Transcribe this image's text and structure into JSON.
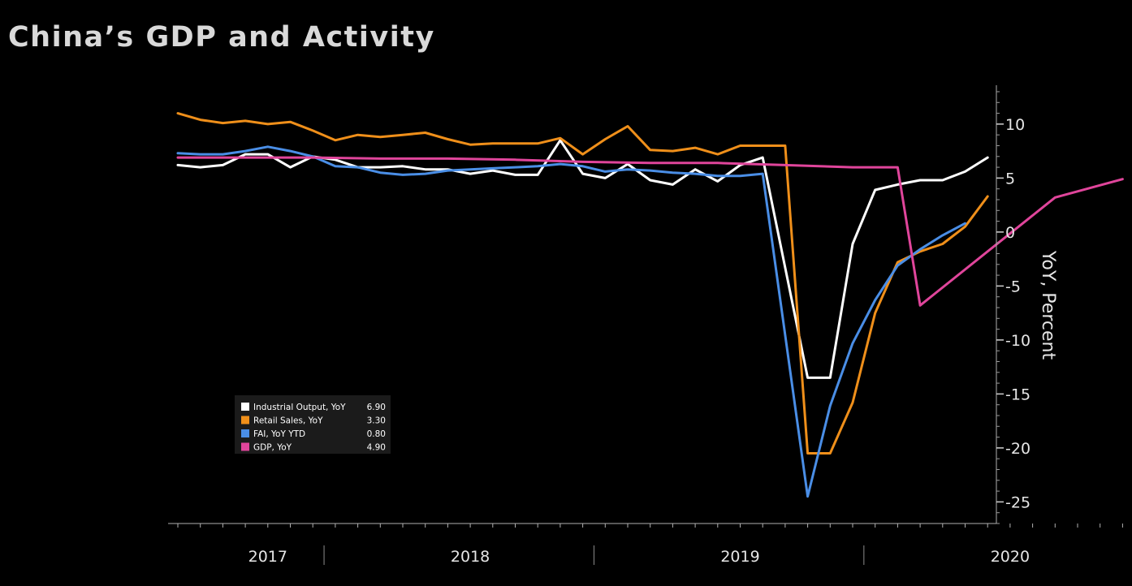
{
  "chart_data": {
    "type": "line",
    "title": "China’s GDP and Activity",
    "ylabel": "YoY, Percent",
    "xlabel": "",
    "ylim": [
      -27,
      13.6
    ],
    "y_ticks": [
      10,
      5,
      0,
      -5,
      -10,
      -15,
      -20,
      -25
    ],
    "y_tick_labels": [
      "10",
      "5",
      "0",
      "-5",
      "-10",
      "-15",
      "-20",
      "-25"
    ],
    "y_axis_position": "right",
    "x_start": "2017-06",
    "x_end": "2021-03",
    "year_labels": [
      {
        "label": "2017",
        "date": "2017-10"
      },
      {
        "label": "2018",
        "date": "2018-07"
      },
      {
        "label": "2019",
        "date": "2019-07"
      },
      {
        "label": "2020",
        "date": "2020-07"
      }
    ],
    "year_separators": [
      "2018-01",
      "2019-01",
      "2020-01"
    ],
    "grid": false,
    "legend_position": "bottom-left",
    "series": [
      {
        "name": "Industrial Output, YoY",
        "last_value": "6.90",
        "color": "#ffffff",
        "start": "2017-06",
        "values": [
          6.2,
          6.0,
          6.2,
          7.2,
          7.2,
          6.0,
          7.0,
          6.7,
          6.0,
          6.0,
          6.1,
          5.8,
          5.8,
          5.4,
          5.7,
          5.3,
          5.3,
          8.5,
          5.4,
          5.0,
          6.3,
          4.8,
          4.4,
          5.8,
          4.7,
          6.2,
          6.9,
          null,
          -13.5,
          -13.5,
          -1.1,
          3.9,
          4.4,
          4.8,
          4.8,
          5.6,
          6.9
        ]
      },
      {
        "name": "Retail Sales, YoY",
        "last_value": "3.30",
        "color": "#ef8f1a",
        "start": "2017-06",
        "values": [
          11.0,
          10.4,
          10.1,
          10.3,
          10.0,
          10.2,
          9.4,
          8.5,
          9.0,
          8.8,
          9.0,
          9.2,
          8.6,
          8.1,
          8.2,
          8.2,
          8.2,
          8.7,
          7.2,
          8.6,
          9.8,
          7.6,
          7.5,
          7.8,
          7.2,
          8.0,
          8.0,
          8.0,
          -20.5,
          -20.5,
          -15.8,
          -7.5,
          -2.8,
          -1.8,
          -1.1,
          0.5,
          3.3
        ]
      },
      {
        "name": "FAI, YoY YTD",
        "last_value": "0.80",
        "color": "#4a8ee6",
        "start": "2017-06",
        "values": [
          7.3,
          7.2,
          7.2,
          7.5,
          7.9,
          7.5,
          7.0,
          6.1,
          6.0,
          5.5,
          5.3,
          5.4,
          5.7,
          5.8,
          5.9,
          6.0,
          6.1,
          6.3,
          6.1,
          5.6,
          5.8,
          5.7,
          5.5,
          5.4,
          5.2,
          5.2,
          5.4,
          null,
          -24.5,
          -16.1,
          -10.3,
          -6.3,
          -3.1,
          -1.6,
          -0.3,
          0.8
        ]
      },
      {
        "name": "GDP, YoY",
        "last_value": "4.90",
        "color": "#e0459b",
        "start": "2017-06",
        "values": [
          6.9,
          6.9,
          6.9,
          6.8,
          6.8,
          6.7,
          6.5,
          6.4,
          6.4,
          6.2,
          6.0,
          6.0,
          6.0,
          -6.8,
          3.2,
          4.9
        ],
        "dates": [
          "2017-06",
          "2017-09",
          "2017-12",
          "2018-03",
          "2018-06",
          "2018-09",
          "2018-12",
          "2019-03",
          "2019-06",
          "2019-09",
          "2019-12",
          "2020-01",
          "2020-02",
          "2020-03",
          "2020-09",
          "2020-12"
        ]
      }
    ]
  }
}
